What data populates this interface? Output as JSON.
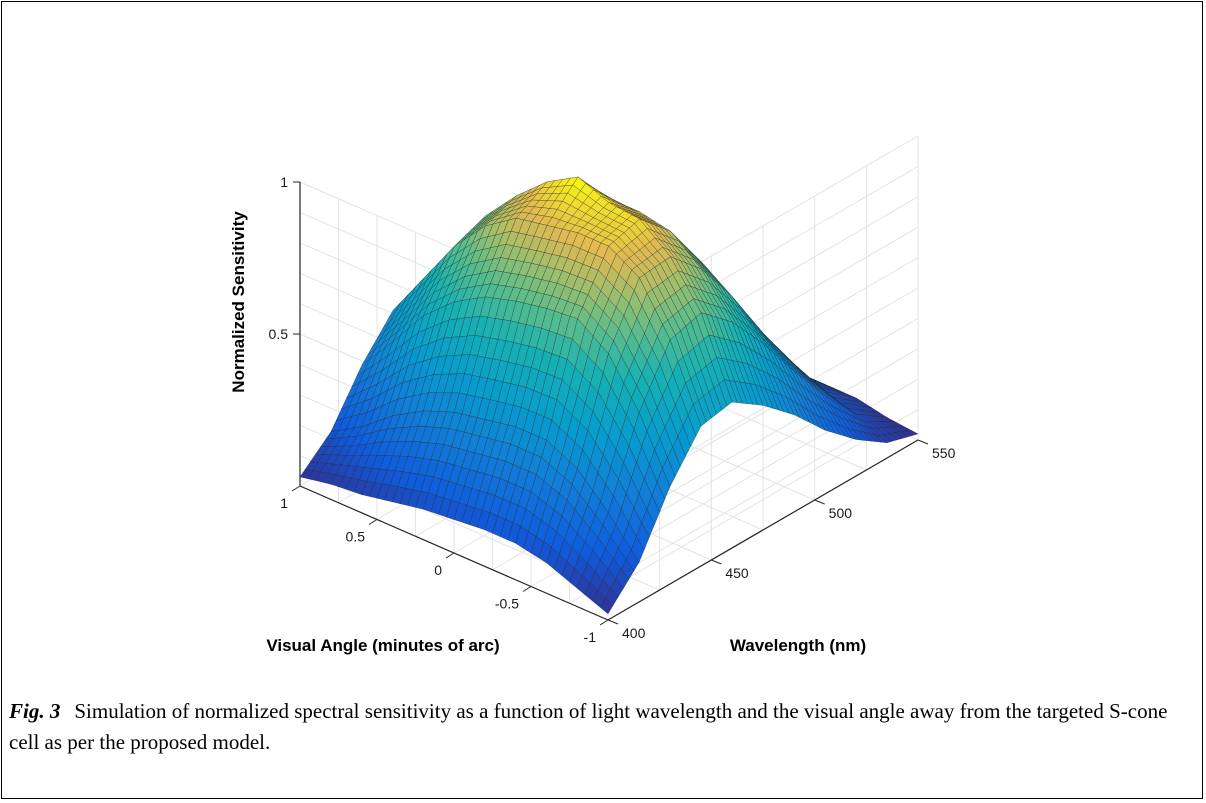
{
  "caption": {
    "label": "Fig. 3",
    "text": "Simulation of normalized spectral sensitivity as a function of light wavelength and the visual angle away from the targeted S-cone cell as per the proposed model."
  },
  "chart_data": {
    "type": "surface",
    "title": "",
    "xlabel": "Wavelength (nm)",
    "ylabel": "Visual Angle (minutes of arc)",
    "zlabel": "Normalized Sensitivity",
    "xlim": [
      400,
      550
    ],
    "ylim": [
      -1,
      1
    ],
    "zlim": [
      0,
      1
    ],
    "x_ticks": [
      "400",
      "450",
      "500",
      "550"
    ],
    "y_ticks": [
      "-1",
      "-0.5",
      "0",
      "0.5",
      "1"
    ],
    "z_ticks": [
      "0.5",
      "1"
    ],
    "colormap": "parula",
    "grid": true,
    "x": [
      400,
      415,
      430,
      445,
      460,
      475,
      490,
      505,
      520,
      535,
      550
    ],
    "y": [
      -1,
      -0.8,
      -0.6,
      -0.4,
      -0.2,
      0,
      0.2,
      0.4,
      0.6,
      0.8,
      1
    ],
    "z": [
      [
        0.02,
        0.13,
        0.32,
        0.46,
        0.48,
        0.41,
        0.32,
        0.21,
        0.12,
        0.05,
        0.02
      ],
      [
        0.06,
        0.25,
        0.52,
        0.7,
        0.73,
        0.64,
        0.51,
        0.36,
        0.22,
        0.1,
        0.03
      ],
      [
        0.1,
        0.35,
        0.67,
        0.86,
        0.87,
        0.77,
        0.62,
        0.44,
        0.28,
        0.13,
        0.05
      ],
      [
        0.12,
        0.4,
        0.74,
        0.92,
        0.95,
        0.85,
        0.69,
        0.49,
        0.31,
        0.15,
        0.05
      ],
      [
        0.12,
        0.4,
        0.73,
        0.92,
        0.96,
        0.87,
        0.7,
        0.5,
        0.32,
        0.15,
        0.05
      ],
      [
        0.11,
        0.38,
        0.71,
        0.9,
        1.0,
        0.87,
        0.67,
        0.47,
        0.3,
        0.14,
        0.04
      ],
      [
        0.1,
        0.36,
        0.68,
        0.88,
        0.94,
        0.82,
        0.65,
        0.45,
        0.28,
        0.13,
        0.04
      ],
      [
        0.08,
        0.32,
        0.62,
        0.81,
        0.85,
        0.75,
        0.59,
        0.41,
        0.25,
        0.11,
        0.03
      ],
      [
        0.06,
        0.26,
        0.53,
        0.7,
        0.74,
        0.65,
        0.51,
        0.35,
        0.21,
        0.09,
        0.02
      ],
      [
        0.05,
        0.18,
        0.4,
        0.55,
        0.58,
        0.51,
        0.4,
        0.27,
        0.16,
        0.07,
        0.02
      ],
      [
        0.03,
        0.12,
        0.28,
        0.4,
        0.42,
        0.37,
        0.29,
        0.19,
        0.11,
        0.05,
        0.01
      ]
    ]
  }
}
